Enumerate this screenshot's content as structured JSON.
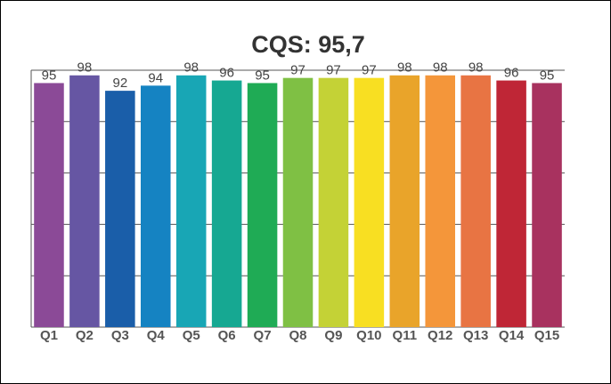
{
  "chart_data": {
    "type": "bar",
    "title": "CQS: 95,7",
    "categories": [
      "Q1",
      "Q2",
      "Q3",
      "Q4",
      "Q5",
      "Q6",
      "Q7",
      "Q8",
      "Q9",
      "Q10",
      "Q11",
      "Q12",
      "Q13",
      "Q14",
      "Q15"
    ],
    "values": [
      95,
      98,
      92,
      94,
      98,
      96,
      95,
      97,
      97,
      97,
      98,
      98,
      98,
      96,
      95
    ],
    "colors": [
      "#8b4a97",
      "#6656a3",
      "#1a5ea9",
      "#1583c2",
      "#18a6b5",
      "#16a892",
      "#1fab55",
      "#7fc044",
      "#c4d236",
      "#f8df22",
      "#e9a42a",
      "#f4963a",
      "#e87443",
      "#bf2636",
      "#a8325f"
    ],
    "ylim": [
      0,
      100
    ],
    "yticks": [
      0,
      20,
      40,
      60,
      80,
      100
    ],
    "grid": true
  }
}
